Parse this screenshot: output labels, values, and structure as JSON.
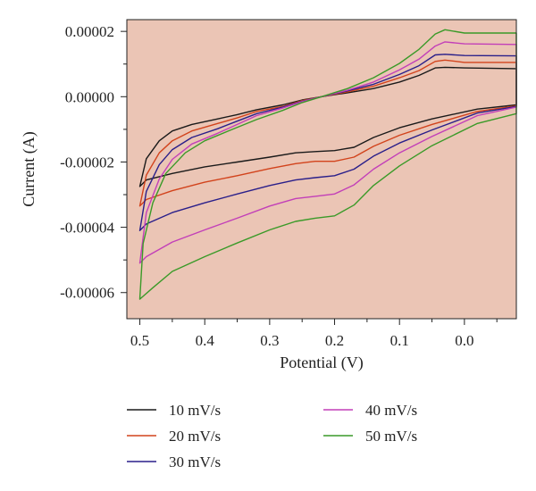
{
  "chart_data": {
    "type": "line",
    "title": "",
    "xlabel": "Potential (V)",
    "ylabel": "Current (A)",
    "xlim": [
      0.52,
      -0.08
    ],
    "ylim": [
      -6.8e-05,
      2.36e-05
    ],
    "x_reversed": true,
    "x_ticks": [
      0.5,
      0.4,
      0.3,
      0.2,
      0.1,
      0.0
    ],
    "x_tick_labels": [
      "0.5",
      "0.4",
      "0.3",
      "0.2",
      "0.1",
      "0.0"
    ],
    "y_ticks": [
      2e-05,
      0.0,
      -2e-05,
      -4e-05,
      -6e-05
    ],
    "y_tick_labels": [
      "0.00002",
      "0.00000",
      "-0.00002",
      "-0.00004",
      "-0.00006"
    ],
    "grid": false,
    "plot_background": "#ebc5b5",
    "legend_position": "bottom",
    "series": [
      {
        "name": "10 mV/s",
        "color": "#1a1a1a",
        "points": [
          [
            0.5,
            -2.75e-05
          ],
          [
            0.49,
            -1.9e-05
          ],
          [
            0.47,
            -1.35e-05
          ],
          [
            0.45,
            -1.05e-05
          ],
          [
            0.42,
            -8.5e-06
          ],
          [
            0.38,
            -6.8e-06
          ],
          [
            0.35,
            -5.5e-06
          ],
          [
            0.32,
            -4e-06
          ],
          [
            0.28,
            -2.5e-06
          ],
          [
            0.25,
            -1e-06
          ],
          [
            0.22,
            0.0
          ],
          [
            0.18,
            1.2e-06
          ],
          [
            0.14,
            2.5e-06
          ],
          [
            0.1,
            4.5e-06
          ],
          [
            0.07,
            6.5e-06
          ],
          [
            0.045,
            8.8e-06
          ],
          [
            0.03,
            9e-06
          ],
          [
            0.0,
            8.8e-06
          ],
          [
            -0.08,
            8.6e-06
          ],
          [
            -0.08,
            -2.5e-06
          ],
          [
            -0.02,
            -3.8e-06
          ],
          [
            0.05,
            -6.8e-06
          ],
          [
            0.1,
            -9.5e-06
          ],
          [
            0.14,
            -1.25e-05
          ],
          [
            0.17,
            -1.55e-05
          ],
          [
            0.2,
            -1.65e-05
          ],
          [
            0.23,
            -1.68e-05
          ],
          [
            0.26,
            -1.72e-05
          ],
          [
            0.3,
            -1.85e-05
          ],
          [
            0.35,
            -2e-05
          ],
          [
            0.4,
            -2.15e-05
          ],
          [
            0.45,
            -2.35e-05
          ],
          [
            0.49,
            -2.55e-05
          ],
          [
            0.5,
            -2.75e-05
          ]
        ]
      },
      {
        "name": "20 mV/s",
        "color": "#d2431c",
        "points": [
          [
            0.5,
            -3.35e-05
          ],
          [
            0.49,
            -2.4e-05
          ],
          [
            0.47,
            -1.72e-05
          ],
          [
            0.45,
            -1.35e-05
          ],
          [
            0.42,
            -1.05e-05
          ],
          [
            0.38,
            -8.2e-06
          ],
          [
            0.35,
            -6.5e-06
          ],
          [
            0.32,
            -4.5e-06
          ],
          [
            0.28,
            -3e-06
          ],
          [
            0.25,
            -1.2e-06
          ],
          [
            0.22,
            0.0
          ],
          [
            0.18,
            1.5e-06
          ],
          [
            0.14,
            3.2e-06
          ],
          [
            0.1,
            5.8e-06
          ],
          [
            0.07,
            8e-06
          ],
          [
            0.045,
            1.08e-05
          ],
          [
            0.03,
            1.12e-05
          ],
          [
            0.0,
            1.05e-05
          ],
          [
            -0.08,
            1.05e-05
          ],
          [
            -0.08,
            -2.8e-06
          ],
          [
            -0.02,
            -4.5e-06
          ],
          [
            0.05,
            -8.5e-06
          ],
          [
            0.1,
            -1.18e-05
          ],
          [
            0.14,
            -1.52e-05
          ],
          [
            0.17,
            -1.85e-05
          ],
          [
            0.2,
            -1.98e-05
          ],
          [
            0.23,
            -1.98e-05
          ],
          [
            0.26,
            -2.05e-05
          ],
          [
            0.3,
            -2.2e-05
          ],
          [
            0.35,
            -2.42e-05
          ],
          [
            0.4,
            -2.62e-05
          ],
          [
            0.45,
            -2.88e-05
          ],
          [
            0.49,
            -3.15e-05
          ],
          [
            0.5,
            -3.35e-05
          ]
        ]
      },
      {
        "name": "30 mV/s",
        "color": "#2a1f8a",
        "points": [
          [
            0.5,
            -4.1e-05
          ],
          [
            0.49,
            -2.9e-05
          ],
          [
            0.47,
            -2.08e-05
          ],
          [
            0.45,
            -1.62e-05
          ],
          [
            0.42,
            -1.25e-05
          ],
          [
            0.38,
            -9.8e-06
          ],
          [
            0.35,
            -7.5e-06
          ],
          [
            0.32,
            -5.2e-06
          ],
          [
            0.28,
            -3.2e-06
          ],
          [
            0.25,
            -1.4e-06
          ],
          [
            0.22,
            0.0
          ],
          [
            0.18,
            1.8e-06
          ],
          [
            0.14,
            3.8e-06
          ],
          [
            0.1,
            6.8e-06
          ],
          [
            0.07,
            9.5e-06
          ],
          [
            0.045,
            1.28e-05
          ],
          [
            0.03,
            1.3e-05
          ],
          [
            0.0,
            1.26e-05
          ],
          [
            -0.08,
            1.25e-05
          ],
          [
            -0.08,
            -3e-06
          ],
          [
            -0.02,
            -5e-06
          ],
          [
            0.05,
            -1.02e-05
          ],
          [
            0.1,
            -1.42e-05
          ],
          [
            0.14,
            -1.82e-05
          ],
          [
            0.17,
            -2.22e-05
          ],
          [
            0.2,
            -2.42e-05
          ],
          [
            0.23,
            -2.48e-05
          ],
          [
            0.26,
            -2.55e-05
          ],
          [
            0.3,
            -2.72e-05
          ],
          [
            0.35,
            -2.98e-05
          ],
          [
            0.4,
            -3.25e-05
          ],
          [
            0.45,
            -3.55e-05
          ],
          [
            0.49,
            -3.9e-05
          ],
          [
            0.5,
            -4.1e-05
          ]
        ]
      },
      {
        "name": "40 mV/s",
        "color": "#c23fb8",
        "points": [
          [
            0.5,
            -5.1e-05
          ],
          [
            0.49,
            -3.55e-05
          ],
          [
            0.47,
            -2.52e-05
          ],
          [
            0.45,
            -1.92e-05
          ],
          [
            0.42,
            -1.45e-05
          ],
          [
            0.38,
            -1.12e-05
          ],
          [
            0.35,
            -8.5e-06
          ],
          [
            0.32,
            -5.8e-06
          ],
          [
            0.28,
            -3.5e-06
          ],
          [
            0.25,
            -1.5e-06
          ],
          [
            0.22,
            0.0
          ],
          [
            0.18,
            2e-06
          ],
          [
            0.14,
            4.5e-06
          ],
          [
            0.1,
            8.2e-06
          ],
          [
            0.07,
            1.15e-05
          ],
          [
            0.045,
            1.55e-05
          ],
          [
            0.03,
            1.68e-05
          ],
          [
            0.0,
            1.62e-05
          ],
          [
            -0.08,
            1.6e-05
          ],
          [
            -0.08,
            -3.2e-06
          ],
          [
            -0.02,
            -5.8e-06
          ],
          [
            0.05,
            -1.22e-05
          ],
          [
            0.1,
            -1.72e-05
          ],
          [
            0.14,
            -2.22e-05
          ],
          [
            0.17,
            -2.7e-05
          ],
          [
            0.2,
            -2.98e-05
          ],
          [
            0.23,
            -3.05e-05
          ],
          [
            0.26,
            -3.12e-05
          ],
          [
            0.3,
            -3.35e-05
          ],
          [
            0.35,
            -3.72e-05
          ],
          [
            0.4,
            -4.08e-05
          ],
          [
            0.45,
            -4.45e-05
          ],
          [
            0.49,
            -4.9e-05
          ],
          [
            0.5,
            -5.1e-05
          ]
        ]
      },
      {
        "name": "50 mV/s",
        "color": "#3a9a28",
        "points": [
          [
            0.5,
            -6.2e-05
          ],
          [
            0.495,
            -4.5e-05
          ],
          [
            0.48,
            -3.25e-05
          ],
          [
            0.46,
            -2.35e-05
          ],
          [
            0.43,
            -1.72e-05
          ],
          [
            0.4,
            -1.35e-05
          ],
          [
            0.36,
            -1.02e-05
          ],
          [
            0.32,
            -7e-06
          ],
          [
            0.28,
            -4.2e-06
          ],
          [
            0.25,
            -1.8e-06
          ],
          [
            0.22,
            0.0
          ],
          [
            0.18,
            2.5e-06
          ],
          [
            0.14,
            5.8e-06
          ],
          [
            0.1,
            1.02e-05
          ],
          [
            0.07,
            1.45e-05
          ],
          [
            0.045,
            1.92e-05
          ],
          [
            0.03,
            2.05e-05
          ],
          [
            0.0,
            1.95e-05
          ],
          [
            -0.08,
            1.95e-05
          ],
          [
            -0.08,
            -5.2e-06
          ],
          [
            -0.02,
            -8.2e-06
          ],
          [
            0.05,
            -1.5e-05
          ],
          [
            0.1,
            -2.12e-05
          ],
          [
            0.14,
            -2.72e-05
          ],
          [
            0.17,
            -3.32e-05
          ],
          [
            0.2,
            -3.65e-05
          ],
          [
            0.23,
            -3.72e-05
          ],
          [
            0.26,
            -3.82e-05
          ],
          [
            0.3,
            -4.08e-05
          ],
          [
            0.35,
            -4.48e-05
          ],
          [
            0.4,
            -4.9e-05
          ],
          [
            0.45,
            -5.35e-05
          ],
          [
            0.48,
            -5.85e-05
          ],
          [
            0.5,
            -6.2e-05
          ]
        ]
      }
    ]
  }
}
